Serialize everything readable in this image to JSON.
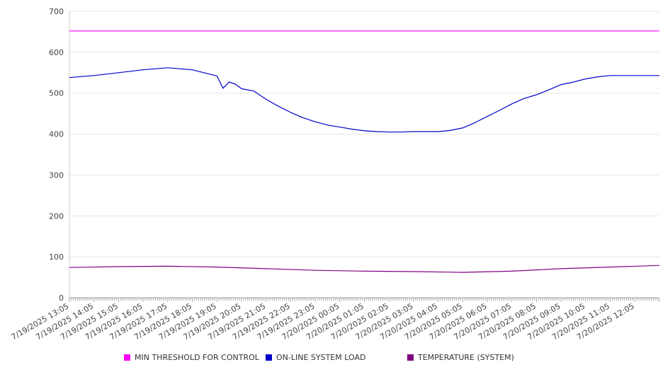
{
  "chart_data": {
    "type": "line",
    "title": "",
    "xlabel": "",
    "ylabel": "",
    "ylim": [
      0,
      700
    ],
    "y_ticks": [
      0,
      100,
      200,
      300,
      400,
      500,
      600,
      700
    ],
    "grid": true,
    "legend_position": "bottom",
    "x_range": [
      "7/19/2025 13:05",
      "7/20/2025 13:05"
    ],
    "x_tick_labels": [
      "7/19/2025 13:05",
      "7/19/2025 14:05",
      "7/19/2025 15:05",
      "7/19/2025 16:05",
      "7/19/2025 17:05",
      "7/19/2025 18:05",
      "7/19/2025 19:05",
      "7/19/2025 20:05",
      "7/19/2025 21:05",
      "7/19/2025 22:05",
      "7/19/2025 23:05",
      "7/20/2025 00:05",
      "7/20/2025 01:05",
      "7/20/2025 02:05",
      "7/20/2025 03:05",
      "7/20/2025 04:05",
      "7/20/2025 05:05",
      "7/20/2025 06:05",
      "7/20/2025 07:05",
      "7/20/2025 08:05",
      "7/20/2025 09:05",
      "7/20/2025 10:05",
      "7/20/2025 11:05",
      "7/20/2025 12:05"
    ],
    "series": [
      {
        "name": "MIN THRESHOLD FOR CONTROL",
        "color": "#ff00ff",
        "x": [
          "7/19/2025 13:05",
          "7/20/2025 13:05"
        ],
        "values": [
          652,
          652
        ]
      },
      {
        "name": "ON-LINE SYSTEM LOAD",
        "color": "#0000cc",
        "x": [
          "7/19/2025 13:05",
          "7/19/2025 14:05",
          "7/19/2025 15:05",
          "7/19/2025 16:05",
          "7/19/2025 17:05",
          "7/19/2025 18:05",
          "7/19/2025 19:05",
          "7/19/2025 19:20",
          "7/19/2025 19:35",
          "7/19/2025 19:50",
          "7/19/2025 20:05",
          "7/19/2025 20:35",
          "7/19/2025 21:05",
          "7/19/2025 21:35",
          "7/19/2025 22:05",
          "7/19/2025 22:35",
          "7/19/2025 23:05",
          "7/19/2025 23:35",
          "7/20/2025 00:05",
          "7/20/2025 00:35",
          "7/20/2025 01:05",
          "7/20/2025 01:35",
          "7/20/2025 02:05",
          "7/20/2025 02:35",
          "7/20/2025 03:05",
          "7/20/2025 03:35",
          "7/20/2025 04:05",
          "7/20/2025 04:35",
          "7/20/2025 05:05",
          "7/20/2025 05:35",
          "7/20/2025 06:05",
          "7/20/2025 06:35",
          "7/20/2025 07:05",
          "7/20/2025 07:35",
          "7/20/2025 08:05",
          "7/20/2025 08:35",
          "7/20/2025 09:05",
          "7/20/2025 09:35",
          "7/20/2025 10:05",
          "7/20/2025 10:35",
          "7/20/2025 11:05",
          "7/20/2025 11:35",
          "7/20/2025 12:05",
          "7/20/2025 12:35",
          "7/20/2025 13:05"
        ],
        "values": [
          538,
          543,
          550,
          557,
          562,
          557,
          542,
          512,
          527,
          522,
          511,
          505,
          485,
          468,
          453,
          440,
          430,
          422,
          417,
          412,
          408,
          406,
          405,
          405,
          406,
          406,
          406,
          409,
          415,
          428,
          443,
          458,
          474,
          487,
          496,
          508,
          521,
          527,
          535,
          540,
          543,
          543,
          543,
          543,
          543
        ]
      },
      {
        "name": "TEMPERATURE (SYSTEM)",
        "color": "#800080",
        "x": [
          "7/19/2025 13:05",
          "7/19/2025 15:05",
          "7/19/2025 17:05",
          "7/19/2025 19:05",
          "7/19/2025 21:05",
          "7/19/2025 23:05",
          "7/20/2025 01:05",
          "7/20/2025 03:05",
          "7/20/2025 05:05",
          "7/20/2025 07:05",
          "7/20/2025 09:05",
          "7/20/2025 11:05",
          "7/20/2025 13:05"
        ],
        "values": [
          74,
          76,
          77,
          75,
          71,
          67,
          65,
          64,
          62,
          65,
          71,
          75,
          79
        ]
      }
    ]
  }
}
